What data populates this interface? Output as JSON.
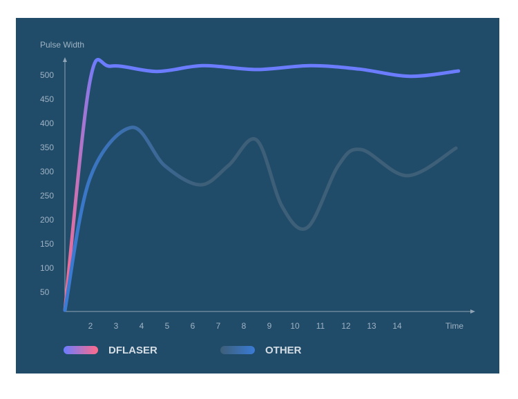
{
  "chart_data": {
    "type": "line",
    "y_label": "Pulse Width",
    "x_label": "Time",
    "xlim": [
      1,
      17
    ],
    "ylim": [
      0,
      550
    ],
    "xticks": [
      2,
      3,
      4,
      5,
      6,
      7,
      8,
      9,
      10,
      11,
      12,
      13,
      14
    ],
    "yticks": [
      50,
      100,
      150,
      200,
      250,
      300,
      350,
      400,
      450,
      500
    ],
    "grid": false,
    "series": [
      {
        "name": "DFLASER",
        "color": "#6b7cff",
        "gradient": [
          "#ff6b8a",
          "#6b7cff"
        ],
        "x": [
          1,
          1.97,
          2.8,
          4.6,
          6.4,
          8.5,
          10.6,
          12.5,
          14.5,
          16.4
        ],
        "values": [
          14,
          486,
          520,
          509,
          521,
          513,
          521,
          514,
          499,
          510
        ]
      },
      {
        "name": "OTHER",
        "color": "#3a7bd5",
        "gradient": [
          "#3a7bd5",
          "#3d5f78"
        ],
        "x": [
          1,
          1.97,
          3.6,
          4.9,
          6.3,
          7.4,
          8.5,
          9.5,
          10.5,
          11.7,
          12.6,
          14.4,
          16.3
        ],
        "values": [
          14,
          286,
          393,
          314,
          274,
          314,
          367,
          229,
          186,
          314,
          347,
          293,
          350
        ]
      }
    ]
  }
}
